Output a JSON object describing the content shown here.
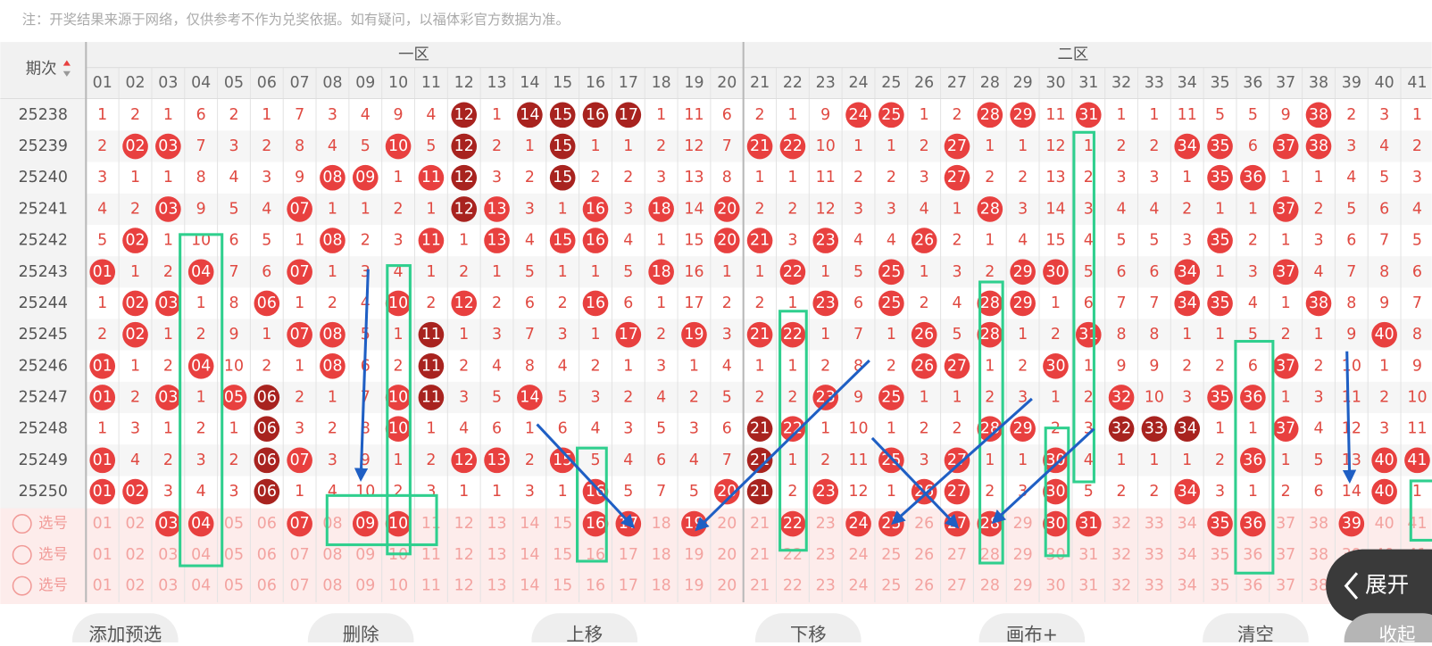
{
  "note": "注：开奖结果来源于网络，仅供参考不作为兑奖依据。如有疑问，以福体彩官方数据为准。",
  "header": {
    "issue_label": "期次",
    "zones": [
      "一区",
      "二区"
    ]
  },
  "columns": [
    "01",
    "02",
    "03",
    "04",
    "05",
    "06",
    "07",
    "08",
    "09",
    "10",
    "11",
    "12",
    "13",
    "14",
    "15",
    "16",
    "17",
    "18",
    "19",
    "20",
    "21",
    "22",
    "23",
    "24",
    "25",
    "26",
    "27",
    "28",
    "29",
    "30",
    "31",
    "32",
    "33",
    "34",
    "35",
    "36",
    "37",
    "38",
    "39",
    "40",
    "41"
  ],
  "rows": [
    {
      "issue": "25238",
      "cells": [
        "1",
        "2",
        "1",
        "6",
        "2",
        "1",
        "7",
        "3",
        "4",
        "9",
        "4",
        "12",
        "1",
        "14",
        "15",
        "16",
        "17",
        "1",
        "11",
        "6",
        "2",
        "1",
        "9",
        "24",
        "25",
        "1",
        "2",
        "28",
        "29",
        "11",
        "31",
        "1",
        "1",
        "11",
        "5",
        "5",
        "9",
        "38",
        "2",
        "3",
        "1"
      ],
      "marks": "...........d.dddd......rr..rr.r......r..."
    },
    {
      "issue": "25239",
      "cells": [
        "2",
        "02",
        "03",
        "7",
        "3",
        "2",
        "8",
        "4",
        "5",
        "10",
        "5",
        "12",
        "2",
        "1",
        "15",
        "1",
        "1",
        "2",
        "12",
        "7",
        "21",
        "22",
        "10",
        "1",
        "1",
        "2",
        "27",
        "1",
        "1",
        "12",
        "1",
        "2",
        "2",
        "34",
        "35",
        "6",
        "37",
        "38",
        "3",
        "4",
        "2"
      ],
      "marks": ".rr......r.d..d.....rr....r......rr.rr..."
    },
    {
      "issue": "25240",
      "cells": [
        "3",
        "1",
        "1",
        "8",
        "4",
        "3",
        "9",
        "08",
        "09",
        "1",
        "11",
        "12",
        "3",
        "2",
        "15",
        "2",
        "2",
        "3",
        "13",
        "8",
        "1",
        "1",
        "11",
        "2",
        "2",
        "3",
        "27",
        "2",
        "2",
        "13",
        "2",
        "3",
        "3",
        "1",
        "35",
        "36",
        "1",
        "1",
        "4",
        "5",
        "3"
      ],
      "marks": ".......rr.rd..d...........r.......rr....."
    },
    {
      "issue": "25241",
      "cells": [
        "4",
        "2",
        "03",
        "9",
        "5",
        "4",
        "07",
        "1",
        "1",
        "2",
        "1",
        "12",
        "13",
        "3",
        "1",
        "16",
        "3",
        "18",
        "14",
        "20",
        "2",
        "2",
        "12",
        "3",
        "3",
        "4",
        "1",
        "28",
        "3",
        "14",
        "3",
        "4",
        "4",
        "2",
        "1",
        "1",
        "37",
        "2",
        "5",
        "6",
        "4"
      ],
      "marks": "..r...r....dr..r.r.r.......r........r...."
    },
    {
      "issue": "25242",
      "cells": [
        "5",
        "02",
        "1",
        "10",
        "6",
        "5",
        "1",
        "08",
        "2",
        "3",
        "11",
        "1",
        "13",
        "4",
        "15",
        "16",
        "4",
        "1",
        "15",
        "20",
        "21",
        "3",
        "23",
        "4",
        "4",
        "26",
        "2",
        "1",
        "4",
        "15",
        "4",
        "5",
        "5",
        "3",
        "35",
        "2",
        "1",
        "3",
        "6",
        "7",
        "5"
      ],
      "marks": ".r.....r..r.r.rr...rr.r..r........r......"
    },
    {
      "issue": "25243",
      "cells": [
        "01",
        "1",
        "2",
        "04",
        "7",
        "6",
        "07",
        "1",
        "3",
        "4",
        "1",
        "2",
        "1",
        "5",
        "1",
        "1",
        "5",
        "18",
        "16",
        "1",
        "1",
        "22",
        "1",
        "5",
        "25",
        "1",
        "3",
        "2",
        "29",
        "30",
        "5",
        "6",
        "6",
        "34",
        "1",
        "3",
        "37",
        "4",
        "7",
        "8",
        "6"
      ],
      "marks": "r..r..r..........r...r..r...rr...r..r...."
    },
    {
      "issue": "25244",
      "cells": [
        "1",
        "02",
        "03",
        "1",
        "8",
        "06",
        "1",
        "2",
        "4",
        "10",
        "2",
        "12",
        "2",
        "6",
        "2",
        "16",
        "6",
        "1",
        "17",
        "2",
        "2",
        "1",
        "23",
        "6",
        "25",
        "2",
        "4",
        "28",
        "29",
        "1",
        "6",
        "7",
        "7",
        "34",
        "35",
        "4",
        "1",
        "38",
        "8",
        "9",
        "7"
      ],
      "marks": ".rr..r...r.r...r......r.r..rr....rr..r..."
    },
    {
      "issue": "25245",
      "cells": [
        "2",
        "02",
        "1",
        "2",
        "9",
        "1",
        "07",
        "08",
        "5",
        "1",
        "11",
        "1",
        "3",
        "7",
        "3",
        "1",
        "17",
        "2",
        "19",
        "3",
        "21",
        "22",
        "1",
        "7",
        "1",
        "26",
        "5",
        "28",
        "1",
        "2",
        "31",
        "8",
        "8",
        "1",
        "1",
        "5",
        "2",
        "1",
        "9",
        "40",
        "8"
      ],
      "marks": ".r....rr..d.....r.r.rr...r.r..r........r."
    },
    {
      "issue": "25246",
      "cells": [
        "01",
        "1",
        "2",
        "04",
        "10",
        "2",
        "1",
        "08",
        "6",
        "2",
        "11",
        "2",
        "4",
        "8",
        "4",
        "2",
        "1",
        "3",
        "1",
        "4",
        "1",
        "1",
        "2",
        "8",
        "2",
        "26",
        "27",
        "1",
        "2",
        "30",
        "1",
        "9",
        "9",
        "2",
        "2",
        "6",
        "37",
        "2",
        "10",
        "1",
        "9"
      ],
      "marks": "r..r...r..d..............rr..r......r...."
    },
    {
      "issue": "25247",
      "cells": [
        "01",
        "2",
        "03",
        "1",
        "05",
        "06",
        "2",
        "1",
        "7",
        "10",
        "11",
        "3",
        "5",
        "14",
        "5",
        "3",
        "2",
        "4",
        "2",
        "5",
        "2",
        "2",
        "23",
        "9",
        "25",
        "1",
        "1",
        "2",
        "3",
        "1",
        "2",
        "32",
        "10",
        "3",
        "35",
        "36",
        "1",
        "3",
        "11",
        "2",
        "10"
      ],
      "marks": "r.r.rd...rd..r........r.r......r..rr....."
    },
    {
      "issue": "25248",
      "cells": [
        "1",
        "3",
        "1",
        "2",
        "1",
        "06",
        "3",
        "2",
        "8",
        "10",
        "1",
        "4",
        "6",
        "1",
        "6",
        "4",
        "3",
        "5",
        "3",
        "6",
        "21",
        "22",
        "1",
        "10",
        "1",
        "2",
        "2",
        "28",
        "29",
        "2",
        "3",
        "32",
        "33",
        "34",
        "1",
        "1",
        "37",
        "4",
        "12",
        "3",
        "11"
      ],
      "marks": ".....d...r..........dr.....rr..ddd..r...."
    },
    {
      "issue": "25249",
      "cells": [
        "01",
        "4",
        "2",
        "3",
        "2",
        "06",
        "07",
        "3",
        "9",
        "1",
        "2",
        "12",
        "13",
        "2",
        "15",
        "5",
        "4",
        "6",
        "4",
        "7",
        "21",
        "1",
        "2",
        "11",
        "25",
        "3",
        "27",
        "1",
        "1",
        "30",
        "4",
        "1",
        "1",
        "1",
        "2",
        "36",
        "1",
        "5",
        "13",
        "40",
        "41"
      ],
      "marks": "r....dr....rr.r.....d...r.r..r.....r...rr"
    },
    {
      "issue": "25250",
      "cells": [
        "01",
        "02",
        "3",
        "4",
        "3",
        "06",
        "1",
        "4",
        "10",
        "2",
        "3",
        "1",
        "1",
        "3",
        "1",
        "16",
        "5",
        "7",
        "5",
        "20",
        "21",
        "2",
        "23",
        "12",
        "1",
        "26",
        "27",
        "2",
        "3",
        "30",
        "5",
        "2",
        "2",
        "34",
        "3",
        "1",
        "2",
        "6",
        "14",
        "40",
        "1"
      ],
      "marks": "rr...d.........r...rd.r..rr..r...r.....r."
    }
  ],
  "select_rows": [
    {
      "label": "选号",
      "marks": "..rr..r.rr.....rr.r..r.rr.rr.rr...rr..r.."
    },
    {
      "label": "选号",
      "marks": "........................................."
    },
    {
      "label": "选号",
      "marks": "........................................."
    }
  ],
  "buttons": [
    "添加预选",
    "删除",
    "上移",
    "下移",
    "画布+",
    "清空",
    "收起"
  ],
  "expand": "展开"
}
